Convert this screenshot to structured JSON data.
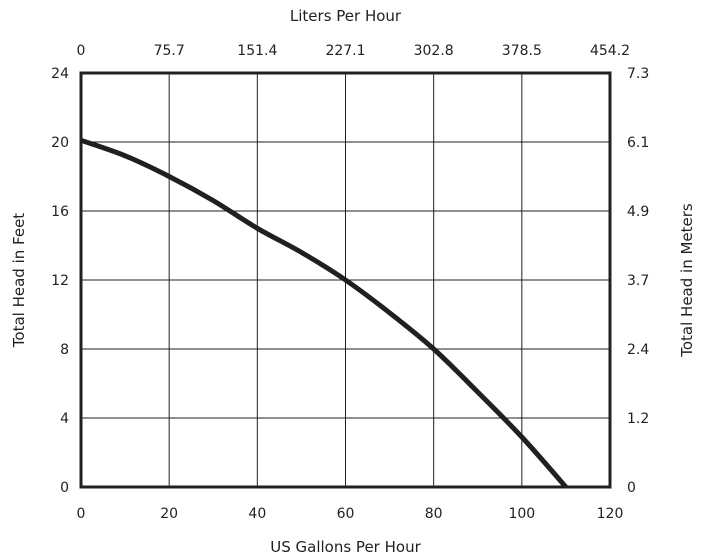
{
  "chart_data": {
    "type": "line",
    "title": "",
    "xlabel": "US Gallons Per Hour",
    "ylabel": "Total Head in Feet",
    "x2label": "Liters Per Hour",
    "y2label": "Total Head in Meters",
    "xlim": [
      0,
      120
    ],
    "ylim": [
      0,
      24
    ],
    "grid": true,
    "x_ticks": [
      "0",
      "20",
      "40",
      "60",
      "80",
      "100",
      "120"
    ],
    "y_ticks": [
      "0",
      "4",
      "8",
      "12",
      "16",
      "20",
      "24"
    ],
    "x2_ticks": [
      "0",
      "75.7",
      "151.4",
      "227.1",
      "302.8",
      "378.5",
      "454.2"
    ],
    "y2_ticks": [
      "0",
      "1.2",
      "2.4",
      "3.7",
      "4.9",
      "6.1",
      "7.3"
    ],
    "series": [
      {
        "name": "",
        "x": [
          0,
          10,
          20,
          30,
          40,
          50,
          60,
          70,
          80,
          90,
          100,
          110
        ],
        "y": [
          20.1,
          19.2,
          18.0,
          16.6,
          15.0,
          13.6,
          12.0,
          10.1,
          8.0,
          5.5,
          2.9,
          0
        ]
      }
    ]
  }
}
